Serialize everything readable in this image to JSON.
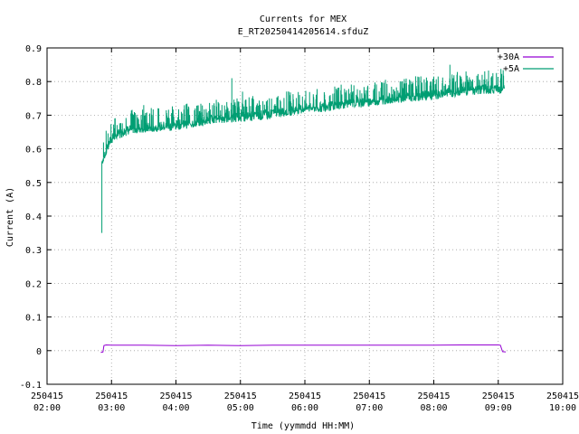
{
  "chart_data": {
    "type": "line",
    "title": "Currents for MEX",
    "subtitle": "E_RT20250414205614.sfduZ",
    "xlabel": "Time (yymmdd HH:MM)",
    "ylabel": "Current (A)",
    "xlim": [
      "250415 02:00",
      "250415 10:00"
    ],
    "ylim": [
      -0.1,
      0.9
    ],
    "grid": true,
    "legend_position": "top-right",
    "x_ticks": [
      {
        "date": "250415",
        "time": "02:00"
      },
      {
        "date": "250415",
        "time": "03:00"
      },
      {
        "date": "250415",
        "time": "04:00"
      },
      {
        "date": "250415",
        "time": "05:00"
      },
      {
        "date": "250415",
        "time": "06:00"
      },
      {
        "date": "250415",
        "time": "07:00"
      },
      {
        "date": "250415",
        "time": "08:00"
      },
      {
        "date": "250415",
        "time": "09:00"
      },
      {
        "date": "250415",
        "time": "10:00"
      }
    ],
    "y_ticks": [
      "-0.1",
      "0",
      "0.1",
      "0.2",
      "0.3",
      "0.4",
      "0.5",
      "0.6",
      "0.7",
      "0.8",
      "0.9"
    ],
    "series": [
      {
        "name": "+30A",
        "color": "#9400d3",
        "points": [
          [
            "02:50",
            -0.005
          ],
          [
            "02:52",
            -0.004
          ],
          [
            "02:53",
            0.015
          ],
          [
            "02:55",
            0.017
          ],
          [
            "03:00",
            0.016
          ],
          [
            "03:30",
            0.016
          ],
          [
            "04:00",
            0.015
          ],
          [
            "04:30",
            0.016
          ],
          [
            "05:00",
            0.015
          ],
          [
            "05:30",
            0.016
          ],
          [
            "06:00",
            0.016
          ],
          [
            "06:30",
            0.016
          ],
          [
            "07:00",
            0.016
          ],
          [
            "07:30",
            0.016
          ],
          [
            "08:00",
            0.016
          ],
          [
            "08:30",
            0.017
          ],
          [
            "09:00",
            0.017
          ],
          [
            "09:02",
            0.016
          ],
          [
            "09:04",
            -0.003
          ],
          [
            "09:07",
            -0.004
          ]
        ]
      },
      {
        "name": "+5A",
        "color": "#009e73",
        "points": [
          [
            "02:51",
            0.35
          ],
          [
            "02:51",
            0.56
          ],
          [
            "02:53",
            0.58
          ],
          [
            "02:57",
            0.61
          ],
          [
            "03:00",
            0.63
          ],
          [
            "03:10",
            0.65
          ],
          [
            "03:20",
            0.66
          ],
          [
            "03:40",
            0.665
          ],
          [
            "04:00",
            0.67
          ],
          [
            "04:20",
            0.68
          ],
          [
            "04:40",
            0.69
          ],
          [
            "05:00",
            0.695
          ],
          [
            "05:20",
            0.7
          ],
          [
            "05:40",
            0.71
          ],
          [
            "06:00",
            0.72
          ],
          [
            "06:20",
            0.725
          ],
          [
            "06:40",
            0.735
          ],
          [
            "07:00",
            0.74
          ],
          [
            "07:20",
            0.75
          ],
          [
            "07:40",
            0.755
          ],
          [
            "08:00",
            0.76
          ],
          [
            "08:20",
            0.77
          ],
          [
            "08:40",
            0.775
          ],
          [
            "09:00",
            0.78
          ],
          [
            "09:06",
            0.78
          ]
        ],
        "spikes": [
          [
            "03:30",
            0.73
          ],
          [
            "04:05",
            0.71
          ],
          [
            "04:40",
            0.735
          ],
          [
            "04:52",
            0.81
          ],
          [
            "05:02",
            0.77
          ],
          [
            "05:25",
            0.745
          ],
          [
            "05:55",
            0.76
          ],
          [
            "06:30",
            0.775
          ],
          [
            "07:05",
            0.79
          ],
          [
            "07:30",
            0.8
          ],
          [
            "08:00",
            0.815
          ],
          [
            "08:15",
            0.85
          ],
          [
            "08:30",
            0.83
          ],
          [
            "08:45",
            0.82
          ],
          [
            "08:55",
            0.825
          ]
        ]
      }
    ]
  }
}
